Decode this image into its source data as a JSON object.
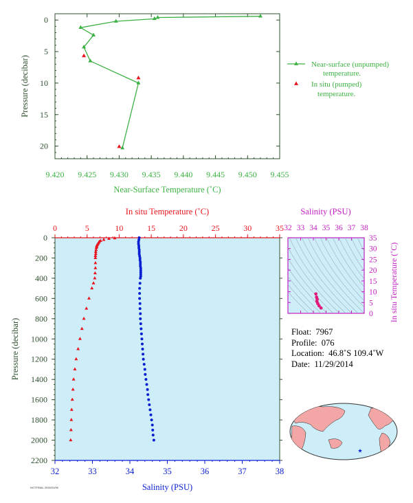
{
  "chart_data": [
    {
      "type": "line",
      "xlabel": "Near-Surface Temperature (˚C)",
      "ylabel": "Pressure (decibar)",
      "xlim": [
        9.42,
        9.455
      ],
      "ylim": [
        22,
        -1
      ],
      "xticks": [
        "9.420",
        "9.425",
        "9.430",
        "9.435",
        "9.440",
        "9.445",
        "9.450",
        "9.455"
      ],
      "yticks": [
        "0",
        "5",
        "10",
        "15",
        "20"
      ],
      "colors": {
        "axis": "#2e4f2e",
        "near_surface": "#3cb043",
        "in_situ": "#e8141e"
      },
      "legend": {
        "placement": "right",
        "items": [
          "Near-surface (unpumped)",
          "temperature.",
          "In situ (pumped)",
          "temperature."
        ]
      },
      "series": [
        {
          "name": "Near-surface (unpumped) temperature.",
          "marker": "triangle",
          "x": [
            9.452,
            9.436,
            9.4355,
            9.4295,
            9.424,
            9.426,
            9.4245,
            9.4255,
            9.433,
            9.4305
          ],
          "y": [
            -0.6,
            -0.4,
            -0.2,
            0.2,
            1.2,
            2.4,
            4.3,
            6.5,
            10.0,
            20.3
          ]
        },
        {
          "name": "In situ (pumped) temperature.",
          "marker": "triangle",
          "x": [
            9.4245,
            9.433,
            9.43
          ],
          "y": [
            5.7,
            9.2,
            20.1
          ]
        }
      ]
    },
    {
      "type": "scatter",
      "title": "In situ Temperature (˚C)",
      "xlabel": "Salinity (PSU)",
      "ylabel": "Pressure (decibar)",
      "temp_lim": [
        0,
        35
      ],
      "sal_lim": [
        32,
        38
      ],
      "ylim": [
        2200,
        0
      ],
      "top_ticks": [
        "0",
        "5",
        "10",
        "15",
        "20",
        "25",
        "30",
        "35"
      ],
      "bottom_ticks": [
        "32",
        "33",
        "34",
        "35",
        "36",
        "37",
        "38"
      ],
      "yticks": [
        "0",
        "200",
        "400",
        "600",
        "800",
        "1000",
        "1200",
        "1400",
        "1600",
        "1800",
        "2000",
        "2200"
      ],
      "colors": {
        "plot_bg": "#cdeef8",
        "temperature": "#e8141e",
        "salinity": "#0a1ed2",
        "axis": "#2e4f2e"
      },
      "temperature": {
        "pressure": [
          5,
          10,
          20,
          30,
          40,
          50,
          60,
          70,
          80,
          90,
          100,
          120,
          140,
          160,
          180,
          200,
          250,
          300,
          350,
          400,
          450,
          500,
          600,
          700,
          800,
          900,
          1000,
          1100,
          1200,
          1300,
          1400,
          1500,
          1600,
          1700,
          1800,
          1900,
          2000
        ],
        "values": [
          9.3,
          8.4,
          7.6,
          7.1,
          6.9,
          6.8,
          6.7,
          6.6,
          6.5,
          6.5,
          6.45,
          6.4,
          6.35,
          6.35,
          6.3,
          6.3,
          6.3,
          6.3,
          6.25,
          6.2,
          6.0,
          5.75,
          5.3,
          4.9,
          4.5,
          4.2,
          3.9,
          3.6,
          3.3,
          3.1,
          2.9,
          2.8,
          2.7,
          2.6,
          2.55,
          2.5,
          2.45
        ]
      },
      "salinity": {
        "pressure": [
          0,
          20,
          40,
          60,
          80,
          100,
          120,
          140,
          160,
          180,
          200,
          220,
          240,
          260,
          280,
          300,
          320,
          340,
          360,
          380,
          400,
          450,
          500,
          550,
          600,
          650,
          700,
          750,
          800,
          850,
          900,
          950,
          1000,
          1050,
          1100,
          1150,
          1200,
          1250,
          1300,
          1350,
          1400,
          1450,
          1500,
          1550,
          1600,
          1650,
          1700,
          1750,
          1800,
          1850,
          1900,
          1950,
          2000
        ],
        "values": [
          34.25,
          34.24,
          34.23,
          34.23,
          34.24,
          34.24,
          34.25,
          34.25,
          34.25,
          34.26,
          34.27,
          34.27,
          34.28,
          34.28,
          34.28,
          34.29,
          34.29,
          34.29,
          34.29,
          34.29,
          34.28,
          34.27,
          34.26,
          34.26,
          34.26,
          34.27,
          34.27,
          34.28,
          34.28,
          34.29,
          34.3,
          34.31,
          34.32,
          34.33,
          34.34,
          34.35,
          34.36,
          34.38,
          34.4,
          34.41,
          34.43,
          34.45,
          34.47,
          34.48,
          34.5,
          34.52,
          34.54,
          34.56,
          34.58,
          34.6,
          34.61,
          34.62,
          34.64
        ]
      }
    },
    {
      "type": "scatter",
      "title": "Salinity (PSU)",
      "ylabel": "In situ Temperature (˚C)",
      "xticks": [
        "32",
        "33",
        "34",
        "35",
        "36",
        "37",
        "38"
      ],
      "yticks": [
        "0",
        "5",
        "10",
        "15",
        "20",
        "25",
        "30",
        "35"
      ],
      "xlim": [
        32,
        38
      ],
      "ylim": [
        0,
        35
      ],
      "colors": {
        "frame": "#c21fc2",
        "points": "#e21a7a",
        "contours": "#b8c9ce"
      },
      "points": {
        "salinity": [
          34.2,
          34.25,
          34.3,
          34.28,
          34.35,
          34.45,
          34.6
        ],
        "temperature": [
          9.0,
          7.5,
          6.5,
          5.5,
          4.5,
          3.5,
          2.5
        ]
      }
    }
  ],
  "info": {
    "float_label": "Float:",
    "float_value": "7967",
    "profile_label": "Profile:",
    "profile_value": "076",
    "location_label": "Location:",
    "location_value": "46.8˚S  109.4˚W",
    "date_label": "Date:",
    "date_value": "11/29/2014"
  },
  "footer_text": "NOTFINAL 2025/01/06",
  "map": {
    "ocean_color": "#cdeef8",
    "land_color": "#f2a6a6",
    "marker": "star",
    "marker_color": "#0a1ed2"
  }
}
